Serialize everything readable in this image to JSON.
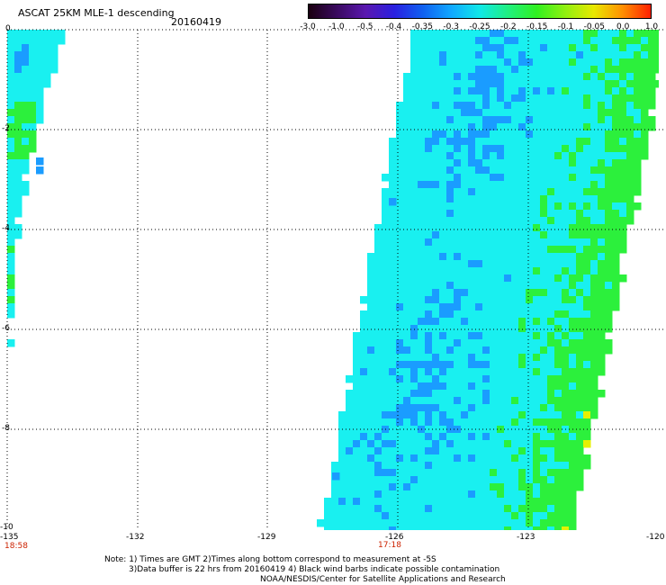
{
  "header": {
    "title": "ASCAT 25KM MLE-1 descending",
    "date": "20160419"
  },
  "colorbar": {
    "labels": [
      "-3.0",
      "-1.0",
      "-0.5",
      "-0.4",
      "-0.35",
      "-0.3",
      "-0.25",
      "-0.2",
      "-0.15",
      "-0.1",
      "-0.05",
      "0.0",
      "1.0"
    ],
    "colors": [
      "#1a0010",
      "#3a0a60",
      "#5a18b0",
      "#2a20e0",
      "#1060f0",
      "#10a8ff",
      "#10e8e8",
      "#20f080",
      "#30f020",
      "#90f010",
      "#e8e800",
      "#ff9000",
      "#ff2000"
    ]
  },
  "map": {
    "lat_labels": [
      "0",
      "-2",
      "-4",
      "-6",
      "-8",
      "-10"
    ],
    "lon_labels": [
      "-135",
      "-132",
      "-129",
      "-126",
      "-123",
      "-120"
    ],
    "pass_times": [
      "18:58",
      "17:18"
    ],
    "legend_colors": {
      "swath_cyan": "#19f0f0",
      "swath_blue": "#1a9cff",
      "swath_green": "#2cf03c",
      "swath_yellow": "#e6f000"
    }
  },
  "notes": [
    "Note: 1) Times are GMT 2)Times along bottom correspond to measurement at -5S",
    "3)Data buffer is 22 hrs from 20160419 4) Black wind barbs indicate possible contamination",
    "NOAA/NESDIS/Center for Satellite Applications and Research"
  ]
}
